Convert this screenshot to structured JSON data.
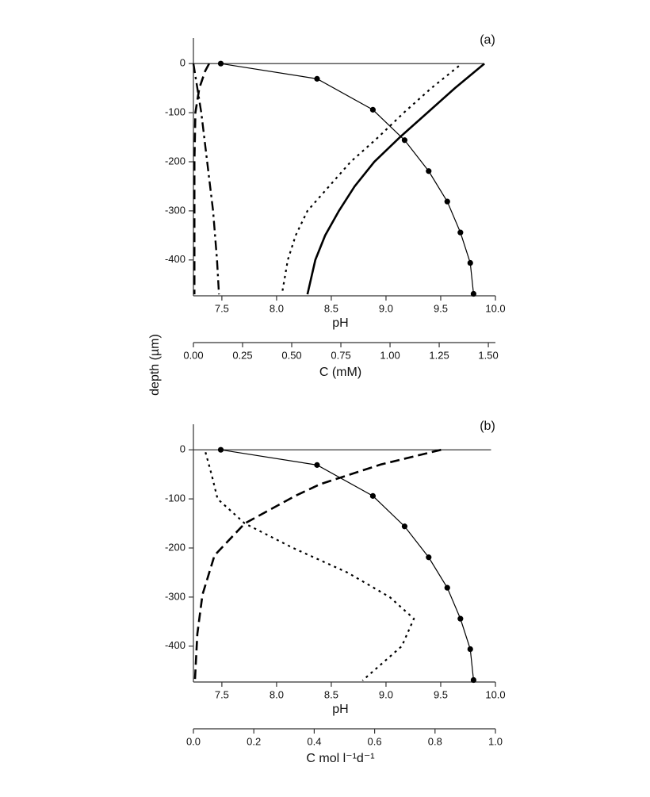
{
  "chart_data": [
    {
      "type": "line",
      "label": "(a)",
      "ylabel": "depth (µm)",
      "xlabel": "pH",
      "x2label": "C (mM)",
      "xlim": [
        7.24,
        10.0
      ],
      "xticks": [
        7.5,
        {
          "value": 8,
          "label": "8.0"
        },
        8.5,
        {
          "value": 9,
          "label": "9.0"
        },
        9.5,
        {
          "value": 10,
          "label": "10.0"
        }
      ],
      "x2lim": [
        0,
        1.536
      ],
      "x2ticks": [
        {
          "value": 0,
          "label": "0.00"
        },
        0.25,
        {
          "value": 0.5,
          "label": "0.50"
        },
        0.75,
        {
          "value": 1,
          "label": "1.00"
        },
        1.25,
        {
          "value": 1.5,
          "label": "1.50"
        }
      ],
      "ylim": [
        -473,
        52
      ],
      "yticks": [
        0,
        -100,
        -200,
        -300,
        -400
      ],
      "hline_y": 0,
      "hline_xmax": 9.89,
      "series": [
        {
          "color": "#000000",
          "style": "solid",
          "width": 1.2,
          "markers": true,
          "axis": "x",
          "y": [
            0,
            -31,
            -94,
            -156,
            -219,
            -281,
            -344,
            -406,
            -469
          ],
          "x": [
            7.49,
            8.37,
            8.88,
            9.17,
            9.39,
            9.56,
            9.68,
            9.77,
            9.8
          ]
        },
        {
          "color": "#000000",
          "style": "solid",
          "width": 2.6,
          "markers": false,
          "axis": "x2",
          "y": [
            0,
            -50,
            -100,
            -150,
            -200,
            -250,
            -300,
            -350,
            -400,
            -470
          ],
          "x": [
            1.48,
            1.33,
            1.19,
            1.05,
            0.92,
            0.82,
            0.74,
            0.67,
            0.62,
            0.58
          ]
        },
        {
          "color": "#000000",
          "style": "dotted",
          "width": 2.2,
          "markers": false,
          "axis": "x2",
          "y": [
            -5,
            -50,
            -100,
            -150,
            -200,
            -250,
            -300,
            -350,
            -400,
            -470
          ],
          "x": [
            1.35,
            1.21,
            1.07,
            0.94,
            0.8,
            0.69,
            0.58,
            0.52,
            0.48,
            0.45
          ]
        },
        {
          "color": "#000000",
          "style": "dashed",
          "width": 2.6,
          "markers": false,
          "axis": "x2",
          "y": [
            0,
            -15,
            -50,
            -100,
            -200,
            -300,
            -400,
            -470
          ],
          "x": [
            0.08,
            0.06,
            0.03,
            0.01,
            0.005,
            0.005,
            0.005,
            0.005
          ]
        },
        {
          "color": "#000000",
          "style": "dashdot",
          "width": 2.4,
          "markers": false,
          "axis": "x2",
          "y": [
            0,
            -100,
            -200,
            -300,
            -400,
            -470
          ],
          "x": [
            0,
            0.04,
            0.07,
            0.1,
            0.12,
            0.13
          ]
        }
      ]
    },
    {
      "type": "line",
      "label": "(b)",
      "xlabel": "pH",
      "x2label": "C mol l⁻¹d⁻¹",
      "xlim": [
        7.24,
        10.0
      ],
      "xticks": [
        7.5,
        {
          "value": 8,
          "label": "8.0"
        },
        8.5,
        {
          "value": 9,
          "label": "9.0"
        },
        9.5,
        {
          "value": 10,
          "label": "10.0"
        }
      ],
      "x2lim": [
        0,
        1
      ],
      "x2ticks": [
        {
          "value": 0,
          "label": "0.0"
        },
        0.2,
        0.4,
        0.6,
        0.8,
        {
          "value": 1,
          "label": "1.0"
        }
      ],
      "ylim": [
        -473,
        52
      ],
      "yticks": [
        0,
        -100,
        -200,
        -300,
        -400
      ],
      "hline_y": 0,
      "hline_xmax": 9.96,
      "series": [
        {
          "color": "#000000",
          "style": "solid",
          "width": 1.2,
          "markers": true,
          "axis": "x",
          "y": [
            0,
            -31,
            -94,
            -156,
            -219,
            -281,
            -344,
            -406,
            -469
          ],
          "x": [
            7.49,
            8.37,
            8.88,
            9.17,
            9.39,
            9.56,
            9.68,
            9.77,
            9.8
          ]
        },
        {
          "color": "#000000",
          "style": "dashed",
          "width": 2.6,
          "markers": false,
          "axis": "x2",
          "y": [
            0,
            -15,
            -30,
            -70,
            -93,
            -150,
            -215,
            -295,
            -375,
            -470
          ],
          "x": [
            0.82,
            0.72,
            0.62,
            0.42,
            0.34,
            0.17,
            0.07,
            0.03,
            0.013,
            0.005
          ]
        },
        {
          "color": "#000000",
          "style": "dotted",
          "width": 2.2,
          "markers": false,
          "axis": "x2",
          "y": [
            -5,
            -50,
            -100,
            -150,
            -200,
            -250,
            -300,
            -344,
            -400,
            -470
          ],
          "x": [
            0.04,
            0.06,
            0.08,
            0.17,
            0.33,
            0.51,
            0.65,
            0.73,
            0.69,
            0.56
          ]
        }
      ]
    }
  ]
}
